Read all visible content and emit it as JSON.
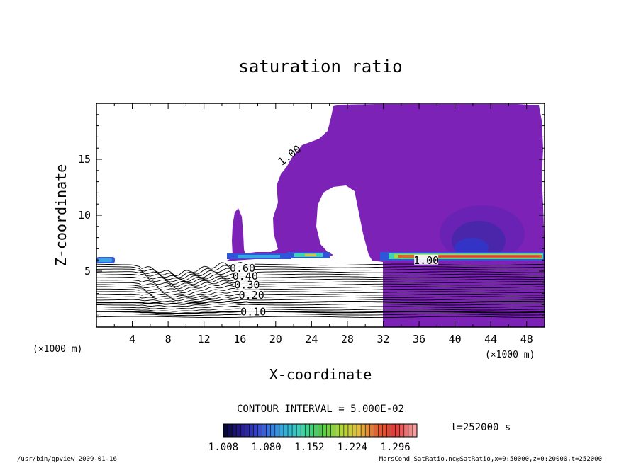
{
  "chart_data": {
    "type": "contour",
    "title": "saturation ratio",
    "xlabel": "X-coordinate",
    "ylabel": "Z-coordinate",
    "x_unit_left": "(×1000 m)",
    "x_unit_right": "(×1000 m)",
    "xlim": [
      0,
      50
    ],
    "ylim": [
      0,
      20
    ],
    "xticks": [
      "4",
      "8",
      "12",
      "16",
      "20",
      "24",
      "28",
      "32",
      "36",
      "40",
      "44",
      "48"
    ],
    "yticks": [
      "5",
      "10",
      "15"
    ],
    "contour_labels": [
      {
        "text": "0.10",
        "x": 17.5,
        "z": 1.3
      },
      {
        "text": "0.20",
        "x": 17.3,
        "z": 2.8
      },
      {
        "text": "0.30",
        "x": 16.8,
        "z": 3.7
      },
      {
        "text": "0.40",
        "x": 16.6,
        "z": 4.5
      },
      {
        "text": "0.60",
        "x": 16.3,
        "z": 5.2
      },
      {
        "text": "1.00",
        "x": 21.6,
        "z": 15.3
      },
      {
        "text": "1.00",
        "x": 36.8,
        "z": 5.9
      }
    ],
    "contour_interval_text": "CONTOUR INTERVAL = 5.000E-02",
    "time_text": "t=252000 s",
    "colorbar": {
      "ticks": [
        "1.008",
        "1.080",
        "1.152",
        "1.224",
        "1.296"
      ],
      "min": 1.008,
      "max": 1.332,
      "colors": [
        "#0a0a3a",
        "#2a1f9e",
        "#3b5bd9",
        "#35a8e0",
        "#3fd3b0",
        "#50c850",
        "#a7d83a",
        "#e0c040",
        "#e06030",
        "#e03a3a",
        "#f2a0a0"
      ]
    },
    "fill_color": "#7c22b7",
    "footer_left": "/usr/bin/gpview   2009-01-16",
    "footer_right": "MarsCond_SatRatio.nc@SatRatio,x=0:50000,z=0:20000,t=252000"
  }
}
